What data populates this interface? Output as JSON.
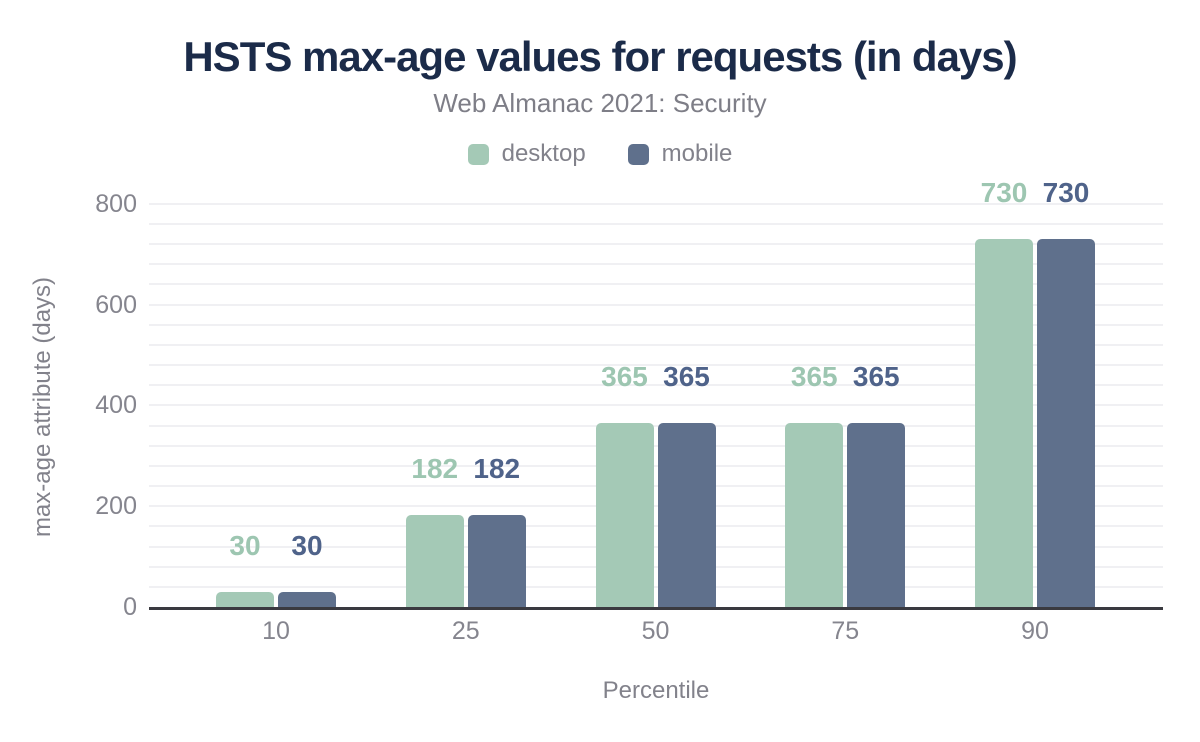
{
  "title": "HSTS max-age values for requests (in days)",
  "subtitle": "Web Almanac 2021: Security",
  "legend": {
    "items": [
      {
        "label": "desktop",
        "color": "#a4c9b6"
      },
      {
        "label": "mobile",
        "color": "#5f708c"
      }
    ]
  },
  "axes": {
    "y_title": "max-age attribute (days)",
    "x_title": "Percentile",
    "y_ticks": [
      "0",
      "200",
      "400",
      "600",
      "800"
    ],
    "x_ticks": [
      "10",
      "25",
      "50",
      "75",
      "90"
    ]
  },
  "colors": {
    "title_text": "#1b2b49",
    "muted_text": "#82828b",
    "desktop_bar": "#a4c9b6",
    "mobile_bar": "#5f708c",
    "desktop_value_label": "#9dc6b1",
    "mobile_value_label": "#4f638a",
    "gridline": "#f0f0f3",
    "axis_line": "#3a3a40",
    "background": "#ffffff"
  },
  "chart_data": {
    "type": "bar",
    "title": "HSTS max-age values for requests (in days)",
    "subtitle": "Web Almanac 2021: Security",
    "categories": [
      "10",
      "25",
      "50",
      "75",
      "90"
    ],
    "series": [
      {
        "name": "desktop",
        "color": "#a4c9b6",
        "values": [
          30,
          182,
          365,
          365,
          730
        ]
      },
      {
        "name": "mobile",
        "color": "#5f708c",
        "values": [
          30,
          182,
          365,
          365,
          730
        ]
      }
    ],
    "xlabel": "Percentile",
    "ylabel": "max-age attribute (days)",
    "ylim": [
      0,
      800
    ],
    "yticks": [
      0,
      200,
      400,
      600,
      800
    ],
    "gridlines_every": 40,
    "grid": "horizontal",
    "legend_position": "top",
    "value_labels": true
  }
}
